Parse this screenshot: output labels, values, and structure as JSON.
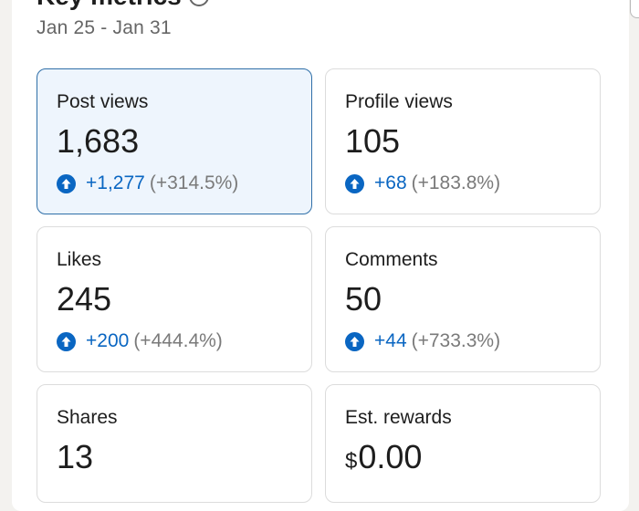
{
  "header": {
    "title": "Key metrics",
    "date_range": "Jan 25 - Jan 31"
  },
  "metrics": [
    {
      "label": "Post views",
      "value": "1,683",
      "change": "+1,277",
      "change_pct": "(+314.5%)",
      "trend_icon": "arrow-up-circle-icon",
      "selected": true
    },
    {
      "label": "Profile views",
      "value": "105",
      "change": "+68",
      "change_pct": "(+183.8%)",
      "trend_icon": "arrow-up-circle-icon",
      "selected": false
    },
    {
      "label": "Likes",
      "value": "245",
      "change": "+200",
      "change_pct": "(+444.4%)",
      "trend_icon": "arrow-up-circle-icon",
      "selected": false
    },
    {
      "label": "Comments",
      "value": "50",
      "change": "+44",
      "change_pct": "(+733.3%)",
      "trend_icon": "arrow-up-circle-icon",
      "selected": false
    },
    {
      "label": "Shares",
      "value": "13",
      "selected": false
    },
    {
      "label": "Est. rewards",
      "currency": "$",
      "value": "0.00",
      "selected": false
    }
  ],
  "colors": {
    "accent": "#0a66c2",
    "selected_bg": "#eef5fd",
    "selected_border": "#2f6fa8",
    "muted_text": "#666666"
  }
}
